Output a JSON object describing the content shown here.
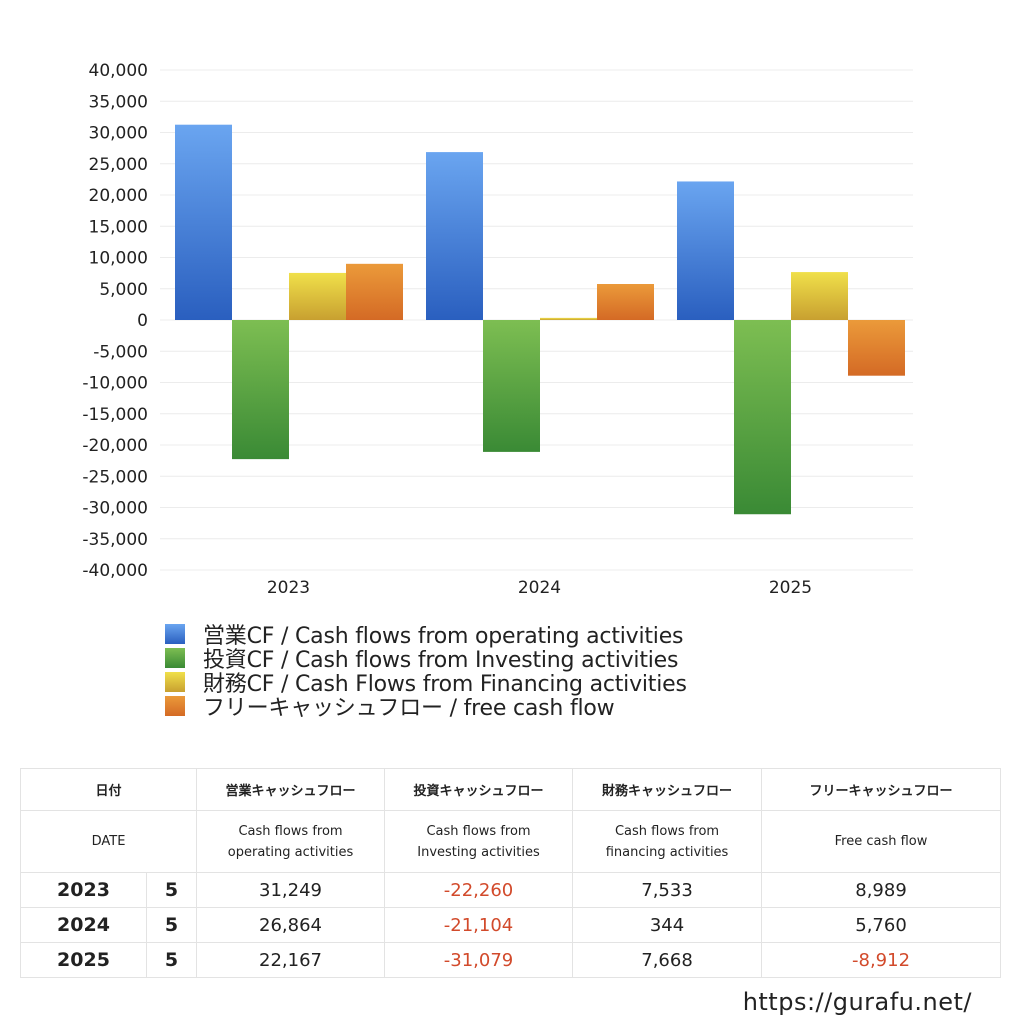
{
  "chart_data": {
    "type": "bar",
    "categories": [
      "2023",
      "2024",
      "2025"
    ],
    "ylim": [
      -40000,
      40000
    ],
    "yticks": [
      40000,
      35000,
      30000,
      25000,
      20000,
      15000,
      10000,
      5000,
      0,
      -5000,
      -10000,
      -15000,
      -20000,
      -25000,
      -30000,
      -35000,
      -40000
    ],
    "ytick_labels": [
      "40,000",
      "35,000",
      "30,000",
      "25,000",
      "20,000",
      "15,000",
      "10,000",
      "5,000",
      "0",
      "-5,000",
      "-10,000",
      "-15,000",
      "-20,000",
      "-25,000",
      "-30,000",
      "-35,000",
      "-40,000"
    ],
    "grid": true,
    "legend_position": "bottom-left",
    "series": [
      {
        "name": "営業CF / Cash flows from operating activities",
        "values": [
          31249,
          26864,
          22167
        ],
        "color_top": "#6aa5f0",
        "color_bottom": "#2a5fbf"
      },
      {
        "name": "投資CF / Cash flows from Investing activities",
        "values": [
          -22260,
          -21104,
          -31079
        ],
        "color_top": "#7dbe52",
        "color_bottom": "#3a8a35"
      },
      {
        "name": "財務CF / Cash Flows from Financing activities",
        "values": [
          7533,
          344,
          7668
        ],
        "color_top": "#f0e04a",
        "color_bottom": "#c8a030"
      },
      {
        "name": "フリーキャッシュフロー / free cash flow",
        "values": [
          8989,
          5760,
          -8912
        ],
        "color_top": "#eb9a3a",
        "color_bottom": "#d46a25"
      }
    ]
  },
  "table": {
    "header_ja": [
      "日付",
      "",
      "営業キャッシュフロー",
      "投資キャッシュフロー",
      "財務キャッシュフロー",
      "フリーキャッシュフロー"
    ],
    "header_en": [
      "DATE",
      "",
      "Cash flows from\noperating activities",
      "Cash flows from\nInvesting activities",
      "Cash flows from\nfinancing activities",
      "Free cash flow"
    ],
    "rows": [
      {
        "year": "2023",
        "month": "5",
        "operating": "31,249",
        "investing": "-22,260",
        "financing": "7,533",
        "free": "8,989"
      },
      {
        "year": "2024",
        "month": "5",
        "operating": "26,864",
        "investing": "-21,104",
        "financing": "344",
        "free": "5,760"
      },
      {
        "year": "2025",
        "month": "5",
        "operating": "22,167",
        "investing": "-31,079",
        "financing": "7,668",
        "free": "-8,912"
      }
    ]
  },
  "site_url": "https://gurafu.net/"
}
